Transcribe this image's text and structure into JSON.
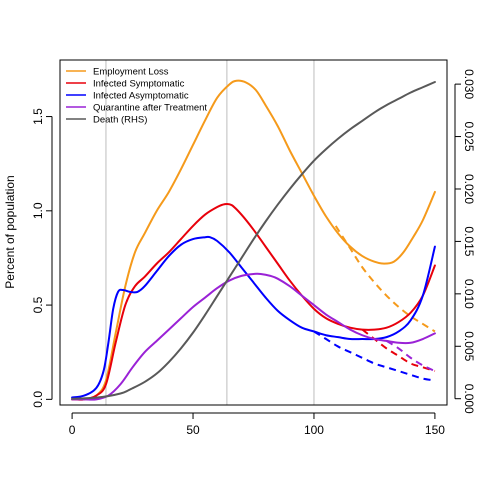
{
  "chart_data": {
    "type": "line",
    "title": "",
    "xlabel": "",
    "ylabel": "Percent of population",
    "y2label": "",
    "xlim": [
      -5,
      155
    ],
    "ylim": [
      -0.03,
      1.8
    ],
    "y2lim": [
      -0.0006,
      0.0323
    ],
    "xticks": [
      0,
      50,
      100,
      150
    ],
    "yticks": [
      0.0,
      0.5,
      1.0,
      1.5
    ],
    "ytick_labels": [
      "0.0",
      "0.5",
      "1.0",
      "1.5"
    ],
    "y2ticks": [
      0.0,
      0.005,
      0.01,
      0.015,
      0.02,
      0.025,
      0.03
    ],
    "y2tick_labels": [
      "0.000",
      "0.005",
      "0.010",
      "0.015",
      "0.020",
      "0.025",
      "0.030"
    ],
    "vlines": [
      14,
      64,
      100
    ],
    "grid": false,
    "legend_position": "top-left",
    "series": [
      {
        "name": "Employment Loss",
        "color": "#f59a1b",
        "axis": "left",
        "x": [
          0,
          5,
          10,
          14,
          18,
          22,
          26,
          30,
          35,
          40,
          45,
          50,
          55,
          60,
          65,
          68,
          72,
          76,
          80,
          85,
          90,
          95,
          100,
          105,
          110,
          115,
          120,
          125,
          129,
          133,
          137,
          141,
          145,
          150
        ],
        "y": [
          0.0,
          0.0,
          0.02,
          0.1,
          0.35,
          0.6,
          0.78,
          0.88,
          1.0,
          1.1,
          1.22,
          1.35,
          1.48,
          1.6,
          1.67,
          1.69,
          1.68,
          1.64,
          1.56,
          1.45,
          1.32,
          1.2,
          1.08,
          0.97,
          0.88,
          0.81,
          0.76,
          0.73,
          0.72,
          0.73,
          0.78,
          0.86,
          0.95,
          1.1
        ],
        "projection": {
          "x": [
            109,
            115,
            120,
            125,
            130,
            135,
            140,
            145,
            150
          ],
          "y": [
            0.92,
            0.8,
            0.7,
            0.62,
            0.55,
            0.49,
            0.44,
            0.4,
            0.36
          ]
        }
      },
      {
        "name": "Infected Symptomatic",
        "color": "#e8000b",
        "axis": "left",
        "x": [
          0,
          5,
          10,
          14,
          18,
          22,
          26,
          30,
          35,
          40,
          45,
          50,
          55,
          60,
          63,
          66,
          70,
          75,
          80,
          85,
          90,
          95,
          100,
          105,
          110,
          115,
          120,
          125,
          130,
          135,
          140,
          145,
          150
        ],
        "y": [
          0.0,
          0.0,
          0.02,
          0.08,
          0.3,
          0.5,
          0.6,
          0.65,
          0.72,
          0.78,
          0.85,
          0.92,
          0.98,
          1.02,
          1.035,
          1.03,
          0.98,
          0.9,
          0.81,
          0.72,
          0.63,
          0.55,
          0.48,
          0.43,
          0.4,
          0.38,
          0.37,
          0.37,
          0.38,
          0.41,
          0.46,
          0.55,
          0.71
        ],
        "projection": {
          "x": [
            120,
            125,
            130,
            135,
            140,
            145,
            150
          ],
          "y": [
            0.37,
            0.32,
            0.27,
            0.23,
            0.19,
            0.17,
            0.15
          ]
        }
      },
      {
        "name": "Infected Asymptomatic",
        "color": "#0000ff",
        "axis": "left",
        "x": [
          0,
          5,
          10,
          13,
          15,
          17,
          19,
          21,
          24,
          27,
          30,
          35,
          40,
          45,
          50,
          55,
          57,
          60,
          65,
          70,
          75,
          80,
          85,
          90,
          95,
          100,
          105,
          110,
          115,
          120,
          125,
          130,
          135,
          140,
          145,
          150
        ],
        "y": [
          0.01,
          0.02,
          0.06,
          0.15,
          0.3,
          0.48,
          0.57,
          0.58,
          0.57,
          0.57,
          0.6,
          0.68,
          0.76,
          0.82,
          0.85,
          0.86,
          0.86,
          0.84,
          0.78,
          0.7,
          0.62,
          0.54,
          0.47,
          0.42,
          0.38,
          0.36,
          0.34,
          0.33,
          0.32,
          0.32,
          0.32,
          0.33,
          0.36,
          0.42,
          0.55,
          0.81
        ],
        "projection": {
          "x": [
            100,
            105,
            110,
            115,
            120,
            125,
            130,
            135,
            140,
            145,
            150
          ],
          "y": [
            0.36,
            0.32,
            0.28,
            0.25,
            0.22,
            0.19,
            0.17,
            0.15,
            0.13,
            0.11,
            0.1
          ]
        }
      },
      {
        "name": "Quarantine after Treatment",
        "color": "#9a22d6",
        "axis": "left",
        "x": [
          0,
          5,
          10,
          15,
          20,
          25,
          30,
          35,
          40,
          45,
          50,
          55,
          60,
          65,
          70,
          75,
          78,
          82,
          85,
          90,
          95,
          100,
          105,
          110,
          115,
          120,
          125,
          130,
          135,
          140,
          145,
          150
        ],
        "y": [
          0.0,
          0.0,
          0.0,
          0.02,
          0.08,
          0.17,
          0.25,
          0.31,
          0.37,
          0.43,
          0.49,
          0.54,
          0.59,
          0.63,
          0.655,
          0.665,
          0.665,
          0.655,
          0.64,
          0.6,
          0.55,
          0.5,
          0.45,
          0.41,
          0.37,
          0.34,
          0.32,
          0.31,
          0.3,
          0.3,
          0.32,
          0.35
        ],
        "projection": {
          "x": [
            130,
            135,
            140,
            145,
            150
          ],
          "y": [
            0.31,
            0.27,
            0.22,
            0.18,
            0.15
          ]
        }
      },
      {
        "name": "Death (RHS)",
        "color": "#595959",
        "axis": "right",
        "x": [
          0,
          10,
          20,
          25,
          30,
          35,
          40,
          45,
          50,
          55,
          60,
          65,
          70,
          75,
          80,
          85,
          90,
          95,
          100,
          105,
          110,
          115,
          120,
          125,
          130,
          135,
          140,
          145,
          150
        ],
        "y": [
          0.0,
          0.0001,
          0.0005,
          0.001,
          0.0016,
          0.0024,
          0.0035,
          0.0048,
          0.0063,
          0.008,
          0.0098,
          0.0116,
          0.0134,
          0.0152,
          0.0169,
          0.0185,
          0.02,
          0.0214,
          0.0227,
          0.0238,
          0.0248,
          0.0257,
          0.0265,
          0.0273,
          0.028,
          0.0286,
          0.0292,
          0.0297,
          0.0302
        ]
      }
    ]
  }
}
